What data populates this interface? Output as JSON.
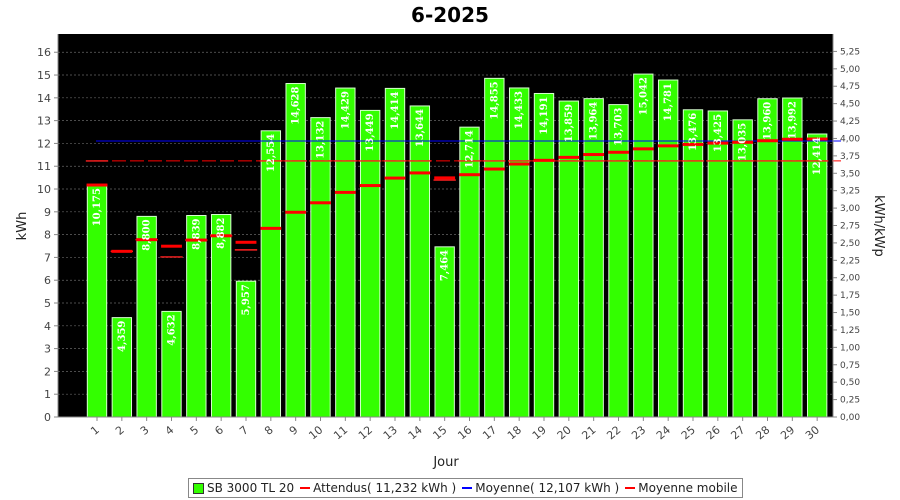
{
  "chart_data": {
    "type": "bar",
    "title": "6-2025",
    "xlabel": "Jour",
    "ylabel": "kWh",
    "ylabel_right": "kWh/kWp",
    "ylim": [
      0,
      16.8
    ],
    "y_ticks": [
      "0",
      "1",
      "2",
      "3",
      "4",
      "5",
      "6",
      "7",
      "8",
      "9",
      "10",
      "11",
      "12",
      "13",
      "14",
      "15",
      "16"
    ],
    "y2lim": [
      0,
      5.5
    ],
    "y2_ticks": [
      "0,00",
      "0,25",
      "0,50",
      "0,75",
      "1,00",
      "1,25",
      "1,50",
      "1,75",
      "2,00",
      "2,25",
      "2,50",
      "2,75",
      "3,00",
      "3,25",
      "3,50",
      "3,75",
      "4,00",
      "4,25",
      "4,50",
      "4,75",
      "5,00",
      "5,25"
    ],
    "categories": [
      "1",
      "2",
      "3",
      "4",
      "5",
      "6",
      "7",
      "8",
      "9",
      "10",
      "11",
      "12",
      "13",
      "14",
      "15",
      "16",
      "17",
      "18",
      "19",
      "20",
      "21",
      "22",
      "23",
      "24",
      "25",
      "26",
      "27",
      "28",
      "29",
      "30"
    ],
    "series": [
      {
        "name": "SB 3000 TL 20",
        "values": [
          10.175,
          4.359,
          8.8,
          4.632,
          8.839,
          8.882,
          5.957,
          12.554,
          14.628,
          13.132,
          14.429,
          13.449,
          14.414,
          13.644,
          7.464,
          12.714,
          14.855,
          14.433,
          14.191,
          13.859,
          13.964,
          13.703,
          15.042,
          14.781,
          13.476,
          13.425,
          13.035,
          13.96,
          13.992,
          12.414
        ],
        "labels": [
          "10,175",
          "4,359",
          "8,800",
          "4,632",
          "8,839",
          "8,882",
          "5,957",
          "12,554",
          "14,628",
          "13,132",
          "14,429",
          "13,449",
          "14,414",
          "13,644",
          "7,464",
          "12,714",
          "14,855",
          "14,433",
          "14,191",
          "13,859",
          "13,964",
          "13,703",
          "15,042",
          "14,781",
          "13,476",
          "13,425",
          "13,035",
          "13,960",
          "13,992",
          "12,414"
        ],
        "color": "#33ff00"
      },
      {
        "name": "Attendus( 11,232 kWh )",
        "value": 11.232,
        "color": "#ff0000"
      },
      {
        "name": "Moyenne( 12,107 kWh )",
        "value": 12.107,
        "color": "#0000ff"
      },
      {
        "name": "Moyenne mobile",
        "values": [
          10.175,
          7.267,
          7.778,
          7.492,
          7.761,
          7.949,
          7.664,
          8.275,
          8.981,
          9.396,
          9.853,
          10.152,
          10.48,
          10.706,
          10.489,
          10.628,
          10.877,
          11.096,
          11.259,
          11.389,
          11.513,
          11.612,
          11.762,
          11.894,
          11.957,
          12.013,
          12.05,
          12.118,
          12.183,
          12.193
        ],
        "color": "#ff0000"
      }
    ],
    "expected_daily": [
      11.232,
      7.267,
      7.778,
      7.022,
      7.761,
      7.949,
      7.331,
      11.232,
      11.232,
      11.232,
      11.232,
      11.232,
      11.232,
      11.232,
      10.394,
      11.232,
      11.232,
      11.232,
      11.232,
      11.232,
      11.232,
      11.232,
      11.232,
      11.232,
      11.232,
      11.232,
      11.232,
      11.232,
      11.232,
      11.232
    ],
    "legend_position": "bottom",
    "grid": true
  },
  "legend": [
    {
      "label": "SB 3000 TL 20",
      "kind": "box",
      "color": "#33ff00"
    },
    {
      "label": "Attendus( 11,232 kWh )",
      "kind": "line",
      "color": "#ff0000"
    },
    {
      "label": "Moyenne( 12,107 kWh )",
      "kind": "line",
      "color": "#0000ff"
    },
    {
      "label": "Moyenne mobile",
      "kind": "line",
      "color": "#ff0000"
    }
  ]
}
